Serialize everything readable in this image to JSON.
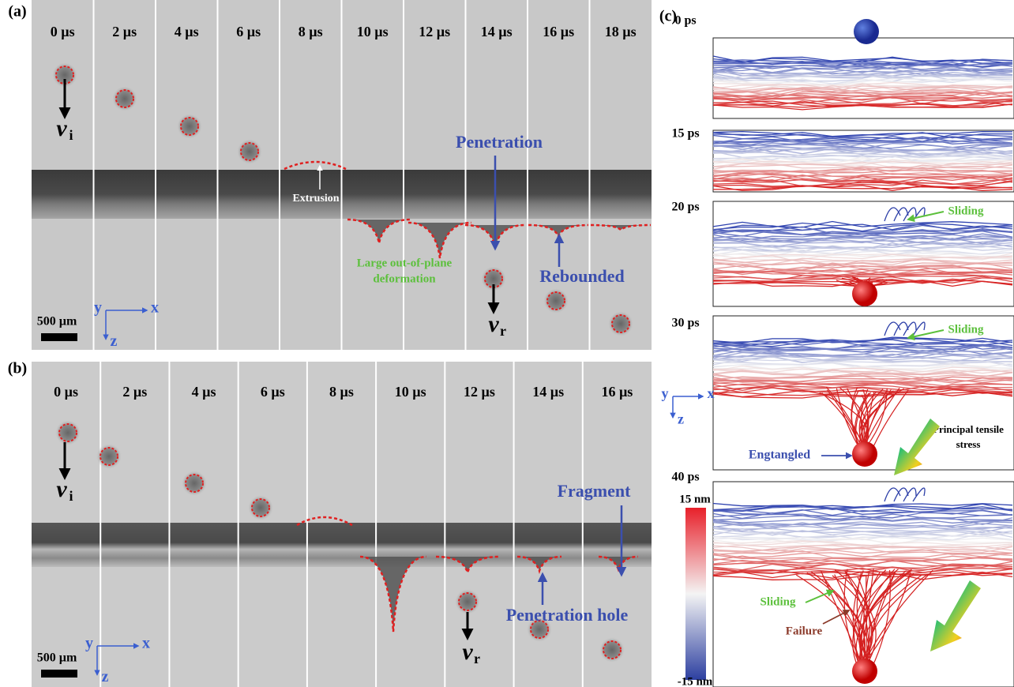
{
  "panel_a": {
    "label": "(a)",
    "times": [
      "0 µs",
      "2 µs",
      "4 µs",
      "6 µs",
      "8 µs",
      "10 µs",
      "12 µs",
      "14 µs",
      "16 µs",
      "18 µs"
    ],
    "annotations": {
      "extrusion": "Extrusion",
      "penetration": "Penetration",
      "deformation": [
        "Large out-of-plane",
        "deformation"
      ],
      "rebounded": "Rebounded"
    },
    "vi": {
      "symbol": "v",
      "subscript": "i"
    },
    "vr": {
      "symbol": "v",
      "subscript": "r"
    },
    "scale_bar": "500 µm",
    "axes": {
      "y": "y",
      "x": "x",
      "z": "z"
    }
  },
  "panel_b": {
    "label": "(b)",
    "times": [
      "0 µs",
      "2 µs",
      "4 µs",
      "6 µs",
      "8 µs",
      "10 µs",
      "12 µs",
      "14 µs",
      "16 µs"
    ],
    "annotations": {
      "fragment": "Fragment",
      "penetration_hole": "Penetration hole"
    },
    "vi": {
      "symbol": "v",
      "subscript": "i"
    },
    "vr": {
      "symbol": "v",
      "subscript": "r"
    },
    "scale_bar": "500 µm",
    "axes": {
      "y": "y",
      "x": "x",
      "z": "z"
    }
  },
  "panel_c": {
    "label": "(c)",
    "times": [
      "0 ps",
      "15 ps",
      "20 ps",
      "30 ps",
      "40 ps"
    ],
    "annotations": {
      "sliding": [
        "Sliding",
        "Sliding",
        "Sliding"
      ],
      "entangled": "Engtangled",
      "stress": [
        "Principal tensile",
        "stress"
      ],
      "failure": "Failure"
    },
    "colorbar": {
      "top": "15 nm",
      "bottom": "-15 nm"
    },
    "axes": {
      "y": "y",
      "x": "x",
      "z": "z"
    }
  }
}
